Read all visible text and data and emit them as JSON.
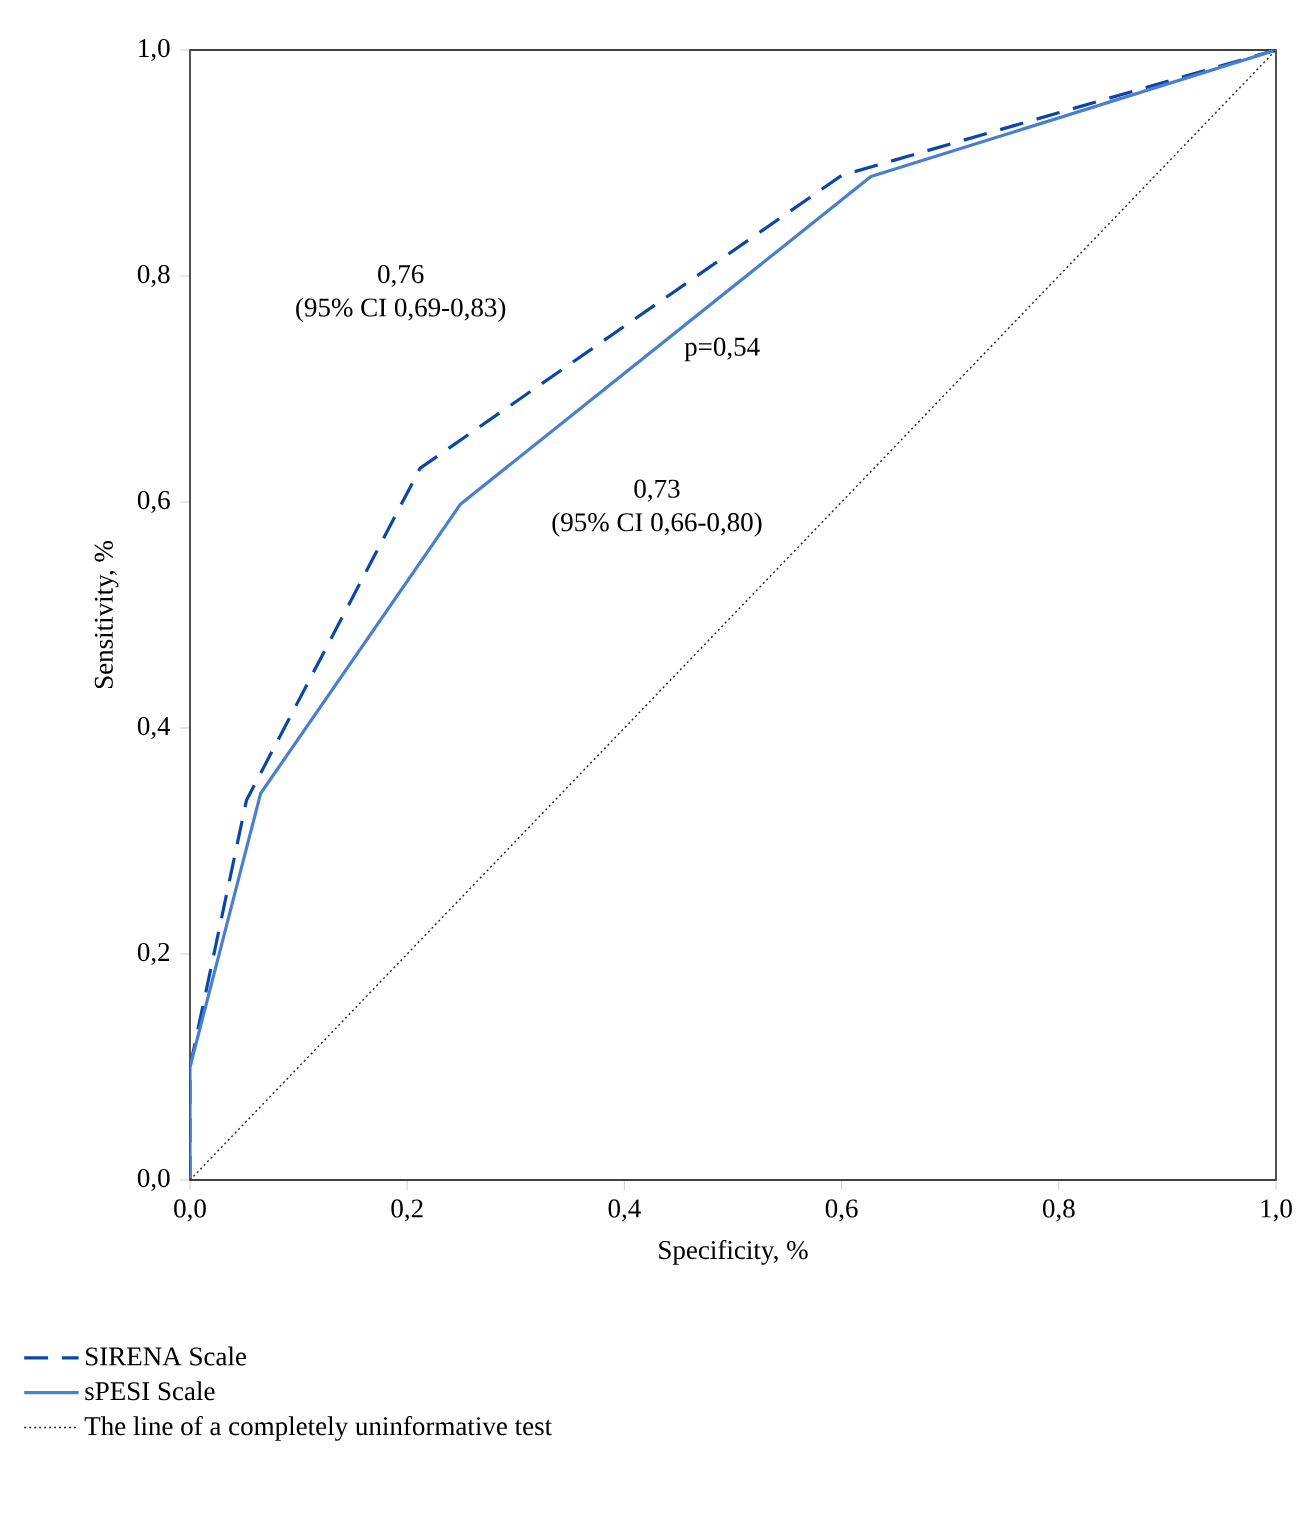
{
  "chart_data": {
    "type": "line",
    "xlabel": "Specificity, %",
    "ylabel": "Sensitivity, %",
    "xlim": [
      0,
      1
    ],
    "ylim": [
      0,
      1
    ],
    "xticks": [
      {
        "value": 0,
        "label": "0,0"
      },
      {
        "value": 0.2,
        "label": "0,2"
      },
      {
        "value": 0.4,
        "label": "0,4"
      },
      {
        "value": 0.6,
        "label": "0,6"
      },
      {
        "value": 0.8,
        "label": "0,8"
      },
      {
        "value": 1,
        "label": "1,0"
      }
    ],
    "yticks": [
      {
        "value": 0,
        "label": "0,0"
      },
      {
        "value": 0.2,
        "label": "0,2"
      },
      {
        "value": 0.4,
        "label": "0,4"
      },
      {
        "value": 0.6,
        "label": "0,6"
      },
      {
        "value": 0.8,
        "label": "0,8"
      },
      {
        "value": 1,
        "label": "1,0"
      }
    ],
    "legend": "bottom",
    "marker": "none",
    "grid": false,
    "series": [
      {
        "name": "SIRENA Scale",
        "color": "#0a47a8",
        "line_style": "dashed",
        "x": [
          0,
          0,
          0.052,
          0.212,
          0.6,
          1
        ],
        "values": [
          0,
          0.1,
          0.336,
          0.63,
          0.889,
          1
        ]
      },
      {
        "name": "sPESI Scale",
        "color": "#4a7fd0",
        "line_style": "solid",
        "x": [
          0,
          0,
          0.065,
          0.249,
          0.627,
          1
        ],
        "values": [
          0,
          0.1,
          0.342,
          0.598,
          0.888,
          1
        ]
      },
      {
        "name": "The line of a completely uninformative test",
        "color": "#222222",
        "line_style": "dotted",
        "x": [
          0,
          1
        ],
        "values": [
          0,
          1
        ]
      }
    ],
    "annotations": [
      "0,76",
      "(95% CI 0,69-0,83)",
      "p=0,54",
      "0,73",
      "(95% CI 0,66-0,80)"
    ]
  }
}
